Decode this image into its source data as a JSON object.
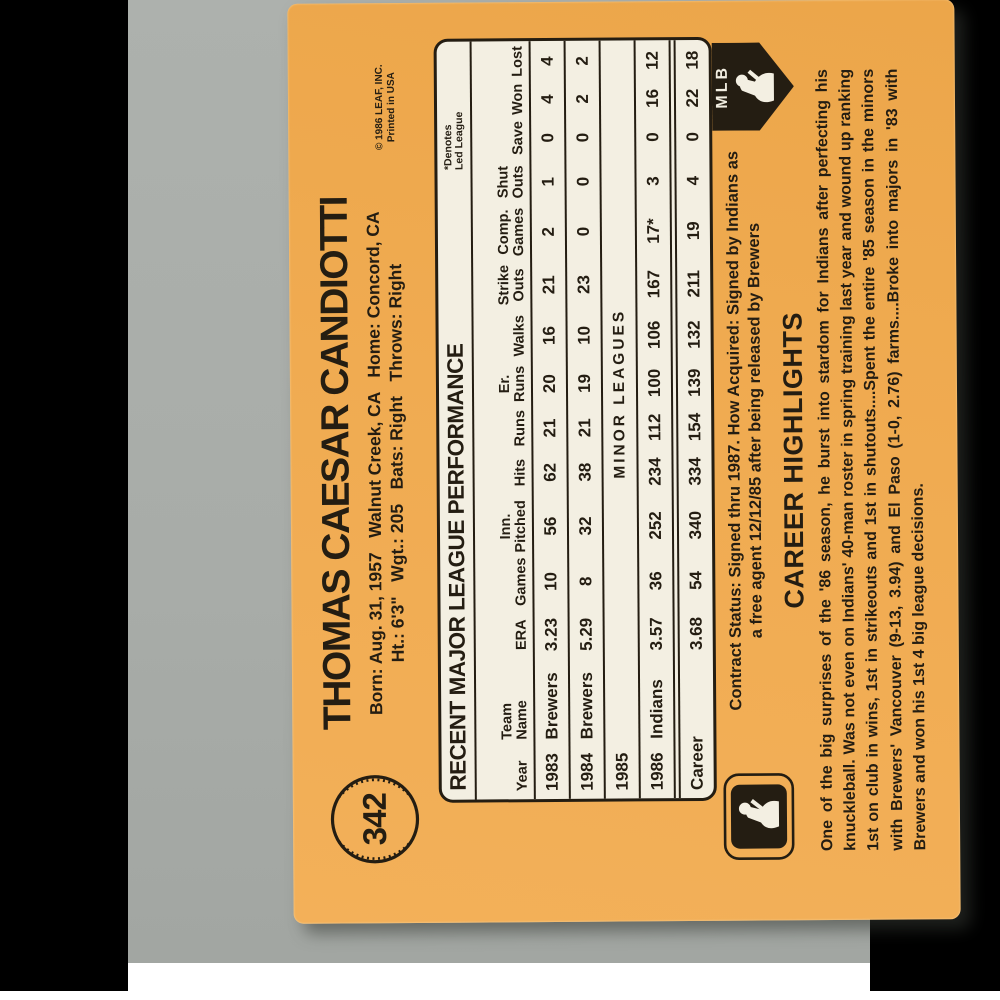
{
  "colors": {
    "card_orange": "#f0ab51",
    "table_cream": "#f3efe2",
    "ink": "#241d12",
    "mat_gray": "#a9ada9",
    "side_bars": "#000000"
  },
  "card": {
    "number": "342",
    "name": "THOMAS CAESAR CANDIOTTI",
    "bio_line1": "Born: Aug. 31, 1957   Walnut Creek, CA   Home: Concord, CA",
    "bio_line2": "Ht.: 6'3\"   Wgt.: 205   Bats: Right   Throws: Right",
    "copyright1": "© 1986 LEAF, INC.",
    "copyright2": "Printed in USA",
    "table": {
      "title": "RECENT MAJOR LEAGUE PERFORMANCE",
      "note1": "*Denotes",
      "note2": "Led League",
      "columns": [
        "Year",
        "Team\nName",
        "ERA",
        "Games",
        "Inn.\nPitched",
        "Hits",
        "Runs",
        "Er.\nRuns",
        "Walks",
        "Strike\nOuts",
        "Comp.\nGames",
        "Shut\nOuts",
        "Save",
        "Won",
        "Lost"
      ],
      "rows": [
        {
          "cells": [
            "1983",
            "Brewers",
            "3.23",
            "10",
            "56",
            "62",
            "21",
            "20",
            "16",
            "21",
            "2",
            "1",
            "0",
            "4",
            "4"
          ]
        },
        {
          "cells": [
            "1984",
            "Brewers",
            "5.29",
            "8",
            "32",
            "38",
            "21",
            "19",
            "10",
            "23",
            "0",
            "0",
            "0",
            "2",
            "2"
          ]
        },
        {
          "year": "1985",
          "span": "MINOR LEAGUES"
        },
        {
          "cells": [
            "1986",
            "Indians",
            "3.57",
            "36",
            "252",
            "234",
            "112",
            "100",
            "106",
            "167",
            "17*",
            "3",
            "0",
            "16",
            "12"
          ]
        },
        {
          "cells": [
            "Career",
            "",
            "3.68",
            "54",
            "340",
            "334",
            "154",
            "139",
            "132",
            "211",
            "19",
            "4",
            "0",
            "22",
            "18"
          ],
          "career": true
        }
      ]
    },
    "contract_line1": "Contract Status: Signed thru 1987. How Acquired: Signed by Indians as",
    "contract_line2": "a free agent 12/12/85 after being released by Brewers",
    "mlb_text": "MLB",
    "highlights_title": "CAREER HIGHLIGHTS",
    "highlights_text": "One of the big surprises of the '86 season, he burst into stardom for Indians after perfecting his knuckleball. Was not even on Indians' 40-man roster in spring training last year and wound up ranking 1st on club in wins, 1st in strikeouts and 1st in shutouts....Spent the entire '85 season in the minors with Brewers' Vancouver (9-13, 3.94) and El Paso (1-0, 2.76) farms....Broke into majors in '83 with Brewers and won his 1st 4 big league decisions."
  }
}
